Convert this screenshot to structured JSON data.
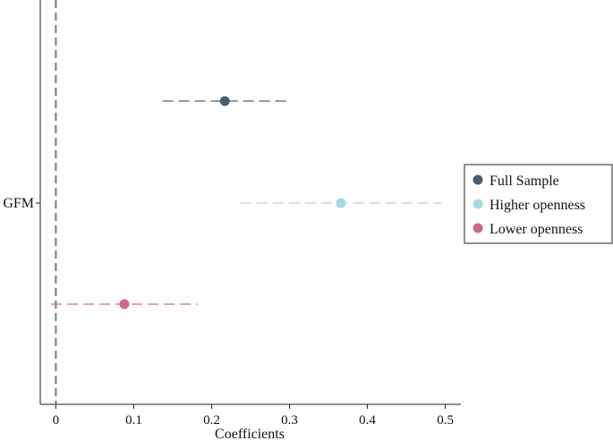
{
  "chart_data": {
    "type": "scatter",
    "subtype": "coefficient-plot",
    "title": "",
    "xlabel": "Coefficients",
    "ylabel": "",
    "category": "GFM",
    "xlim": [
      -0.02,
      0.52
    ],
    "xticks": [
      0,
      0.1,
      0.2,
      0.3,
      0.4,
      0.5
    ],
    "xtick_labels": [
      "0",
      "0.1",
      "0.2",
      "0.3",
      "0.4",
      "0.5"
    ],
    "reference_line": 0,
    "grid": false,
    "legend_position": "right",
    "series": [
      {
        "name": "Full Sample",
        "estimate": 0.217,
        "ci_low": 0.137,
        "ci_high": 0.297,
        "color": "#4a5e6e"
      },
      {
        "name": "Higher openness",
        "estimate": 0.366,
        "ci_low": 0.237,
        "ci_high": 0.495,
        "color": "#a6d8e3"
      },
      {
        "name": "Lower openness",
        "estimate": 0.088,
        "ci_low": -0.006,
        "ci_high": 0.182,
        "color": "#cd6b82"
      }
    ]
  }
}
